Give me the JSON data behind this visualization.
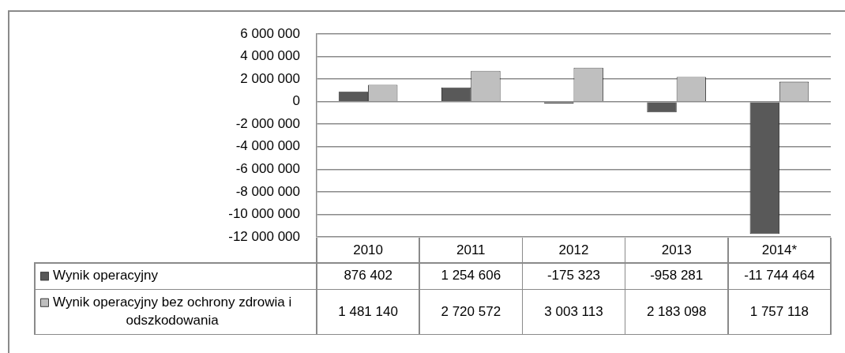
{
  "chart_data": {
    "type": "bar",
    "categories": [
      "2010",
      "2011",
      "2012",
      "2013",
      "2014*"
    ],
    "series": [
      {
        "name": "Wynik operacyjny",
        "color": "#595959",
        "values": [
          876402,
          1254606,
          -175323,
          -958281,
          -11744464
        ],
        "value_labels": [
          "876 402",
          "1 254 606",
          "-175 323",
          "-958 281",
          "-11 744 464"
        ]
      },
      {
        "name": "Wynik operacyjny bez ochrony zdrowia i odszkodowania",
        "color": "#bfbfbf",
        "values": [
          1481140,
          2720572,
          3003113,
          2183098,
          1757118
        ],
        "value_labels": [
          "1 481 140",
          "2 720 572",
          "3 003 113",
          "2 183 098",
          "1 757 118"
        ]
      }
    ],
    "ylim": [
      -12000000,
      6000000
    ],
    "yticks": [
      {
        "value": 6000000,
        "label": "6 000 000"
      },
      {
        "value": 4000000,
        "label": "4 000 000"
      },
      {
        "value": 2000000,
        "label": "2 000 000"
      },
      0,
      {
        "value": -2000000,
        "label": "-2 000 000"
      },
      {
        "value": -4000000,
        "label": "-4 000 000"
      },
      {
        "value": -6000000,
        "label": "-6 000 000"
      },
      {
        "value": -8000000,
        "label": "-8 000 000"
      },
      {
        "value": -10000000,
        "label": "-10 000 000"
      },
      {
        "value": -12000000,
        "label": "-12 000 000"
      }
    ],
    "grid": "y",
    "legend": "bottom left"
  }
}
